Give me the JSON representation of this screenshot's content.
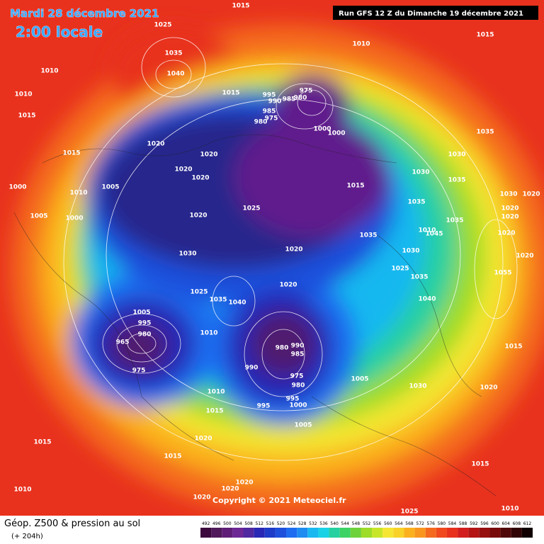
{
  "header": {
    "date": "Mardi 28 décembre 2021",
    "time": "2:00 locale",
    "run": "Run GFS 12 Z du Dimanche 19 décembre 2021"
  },
  "footer": {
    "copyright": "Copyright © 2021 Meteociel.fr",
    "caption": "Géop. Z500 & pression au sol",
    "lead": "(+ 204h)"
  },
  "isobar_labels": [
    "1015",
    "1025",
    "1035",
    "1040",
    "1010",
    "1010",
    "1015",
    "1015",
    "995",
    "990",
    "985",
    "975",
    "980",
    "985",
    "975",
    "980",
    "1010",
    "1015",
    "1000",
    "1000",
    "1020",
    "1015",
    "1020",
    "1020",
    "1020",
    "1005",
    "1000",
    "1010",
    "1000",
    "1005",
    "1015",
    "1030",
    "1030",
    "1035",
    "1035",
    "1025",
    "1020",
    "1035",
    "1035",
    "1030",
    "1020",
    "1020",
    "1020",
    "1020",
    "1010",
    "1045",
    "1035",
    "1020",
    "1030",
    "1020",
    "1030",
    "1025",
    "1035",
    "1055",
    "1020",
    "1025",
    "1040",
    "1040",
    "1035",
    "1005",
    "995",
    "980",
    "965",
    "975",
    "1010",
    "980",
    "990",
    "985",
    "990",
    "975",
    "980",
    "1005",
    "1015",
    "1010",
    "1015",
    "995",
    "995",
    "1000",
    "1030",
    "1020",
    "1005",
    "1020",
    "1015",
    "1015",
    "1010",
    "1015",
    "1020",
    "1020",
    "1020",
    "1025",
    "1010"
  ],
  "scale": {
    "labels": [
      "492",
      "496",
      "500",
      "504",
      "508",
      "512",
      "516",
      "520",
      "524",
      "528",
      "532",
      "536",
      "540",
      "544",
      "548",
      "552",
      "556",
      "560",
      "564",
      "568",
      "572",
      "576",
      "580",
      "584",
      "588",
      "592",
      "596",
      "600",
      "604",
      "608",
      "612"
    ],
    "colors": [
      "#3c0a3c",
      "#501a5a",
      "#601e78",
      "#6e2896",
      "#5028a0",
      "#2828b4",
      "#1e3cc8",
      "#1e50dc",
      "#1e6cf0",
      "#1e8cf0",
      "#19b8f0",
      "#19d2e6",
      "#26d0a0",
      "#3cd264",
      "#6ed23c",
      "#9ddc28",
      "#c8e628",
      "#f4e632",
      "#f8d228",
      "#fbb11e",
      "#f8961e",
      "#f46a1e",
      "#f04a1e",
      "#e8321e",
      "#d21e1e",
      "#b41414",
      "#961010",
      "#780a0a",
      "#500808",
      "#300404",
      "#100000"
    ]
  }
}
